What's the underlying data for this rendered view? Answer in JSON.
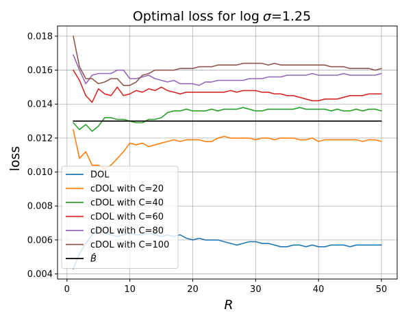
{
  "chart_data": {
    "type": "line",
    "title": "Optimal loss for log σ=1.25",
    "title_parts": {
      "prefix": "Optimal loss for ",
      "fn": "log",
      "sym": "σ",
      "suffix": "=1.25"
    },
    "xlabel": "R",
    "ylabel": "loss",
    "xlim": [
      -1.5,
      52.5
    ],
    "ylim": [
      0.0037,
      0.0186
    ],
    "xticks": [
      0,
      10,
      20,
      30,
      40,
      50
    ],
    "yticks": [
      0.004,
      0.006,
      0.008,
      0.01,
      0.012,
      0.014,
      0.016,
      0.018
    ],
    "ytick_labels": [
      "0.004",
      "0.006",
      "0.008",
      "0.010",
      "0.012",
      "0.014",
      "0.016",
      "0.018"
    ],
    "grid": true,
    "legend_position": "lower-left",
    "x": [
      1,
      2,
      3,
      4,
      5,
      6,
      7,
      8,
      9,
      10,
      11,
      12,
      13,
      14,
      15,
      16,
      17,
      18,
      19,
      20,
      21,
      22,
      23,
      24,
      25,
      26,
      27,
      28,
      29,
      30,
      31,
      32,
      33,
      34,
      35,
      36,
      37,
      38,
      39,
      40,
      41,
      42,
      43,
      44,
      45,
      46,
      47,
      48,
      49,
      50
    ],
    "series": [
      {
        "name": "DOL",
        "color": "#1f77b4",
        "values": [
          0.0043,
          0.0052,
          0.0058,
          0.0063,
          0.0067,
          0.0064,
          0.0063,
          0.0062,
          0.0063,
          0.0064,
          0.0063,
          0.0063,
          0.0064,
          0.0063,
          0.0062,
          0.0063,
          0.0062,
          0.0063,
          0.0061,
          0.006,
          0.0061,
          0.006,
          0.006,
          0.006,
          0.0059,
          0.0058,
          0.0057,
          0.0058,
          0.0059,
          0.0059,
          0.0058,
          0.0058,
          0.0057,
          0.0056,
          0.0056,
          0.0057,
          0.0057,
          0.0056,
          0.0057,
          0.0056,
          0.0056,
          0.0057,
          0.0057,
          0.0057,
          0.0056,
          0.0057,
          0.0057,
          0.0057,
          0.0057,
          0.0057
        ]
      },
      {
        "name": "cDOL with C=20",
        "color": "#ff7f0e",
        "values": [
          0.0125,
          0.0108,
          0.0112,
          0.0104,
          0.0104,
          0.0102,
          0.0104,
          0.0108,
          0.0112,
          0.0117,
          0.0116,
          0.0117,
          0.0115,
          0.0116,
          0.0117,
          0.0118,
          0.0119,
          0.0118,
          0.0119,
          0.0119,
          0.0119,
          0.0118,
          0.0118,
          0.012,
          0.0121,
          0.012,
          0.012,
          0.012,
          0.012,
          0.0119,
          0.012,
          0.012,
          0.0119,
          0.012,
          0.012,
          0.012,
          0.0119,
          0.0119,
          0.012,
          0.0118,
          0.0119,
          0.0119,
          0.0119,
          0.0119,
          0.0119,
          0.0119,
          0.0118,
          0.0119,
          0.0119,
          0.0118
        ]
      },
      {
        "name": "cDOL with C=40",
        "color": "#2ca02c",
        "values": [
          0.0129,
          0.0125,
          0.0128,
          0.0124,
          0.0127,
          0.0132,
          0.0132,
          0.0131,
          0.0131,
          0.013,
          0.0129,
          0.0129,
          0.0131,
          0.0131,
          0.0132,
          0.0135,
          0.0136,
          0.0136,
          0.0137,
          0.0136,
          0.0136,
          0.0136,
          0.0137,
          0.0136,
          0.0137,
          0.0137,
          0.0137,
          0.0138,
          0.0137,
          0.0136,
          0.0136,
          0.0137,
          0.0137,
          0.0137,
          0.0137,
          0.0137,
          0.0138,
          0.0137,
          0.0137,
          0.0137,
          0.0137,
          0.0136,
          0.0137,
          0.0136,
          0.0136,
          0.0137,
          0.0136,
          0.0137,
          0.0137,
          0.0136
        ]
      },
      {
        "name": "cDOL with C=60",
        "color": "#d62728",
        "values": [
          0.016,
          0.0154,
          0.0145,
          0.0141,
          0.0149,
          0.0146,
          0.0145,
          0.015,
          0.0145,
          0.0146,
          0.0148,
          0.0147,
          0.0149,
          0.0148,
          0.015,
          0.0148,
          0.0147,
          0.0146,
          0.0147,
          0.0147,
          0.0147,
          0.0147,
          0.0147,
          0.0147,
          0.0147,
          0.0148,
          0.0147,
          0.0148,
          0.0148,
          0.0148,
          0.0147,
          0.0147,
          0.0146,
          0.0146,
          0.0145,
          0.0145,
          0.0144,
          0.0143,
          0.0142,
          0.0142,
          0.0143,
          0.0143,
          0.0143,
          0.0144,
          0.0145,
          0.0145,
          0.0145,
          0.0146,
          0.0146,
          0.0146
        ]
      },
      {
        "name": "cDOL with C=80",
        "color": "#9467bd",
        "values": [
          0.0169,
          0.016,
          0.0152,
          0.0157,
          0.0158,
          0.0158,
          0.0158,
          0.016,
          0.016,
          0.0155,
          0.0155,
          0.0156,
          0.0157,
          0.0155,
          0.0154,
          0.0153,
          0.0154,
          0.0152,
          0.0152,
          0.0152,
          0.0151,
          0.0153,
          0.0153,
          0.0154,
          0.0154,
          0.0154,
          0.0154,
          0.0154,
          0.0155,
          0.0155,
          0.0155,
          0.0156,
          0.0156,
          0.0156,
          0.0157,
          0.0157,
          0.0157,
          0.0157,
          0.0158,
          0.0157,
          0.0157,
          0.0157,
          0.0157,
          0.0158,
          0.0157,
          0.0157,
          0.0157,
          0.0157,
          0.0157,
          0.0158
        ]
      },
      {
        "name": "cDOL with C=100",
        "color": "#8c564b",
        "values": [
          0.018,
          0.0162,
          0.0155,
          0.0155,
          0.0152,
          0.0153,
          0.0155,
          0.0155,
          0.0151,
          0.0151,
          0.0153,
          0.0157,
          0.0158,
          0.016,
          0.016,
          0.016,
          0.016,
          0.0161,
          0.0161,
          0.0161,
          0.0162,
          0.0162,
          0.0162,
          0.0163,
          0.0163,
          0.0163,
          0.0163,
          0.0164,
          0.0164,
          0.0164,
          0.0164,
          0.0163,
          0.0164,
          0.0163,
          0.0163,
          0.0163,
          0.0163,
          0.0163,
          0.0163,
          0.0163,
          0.0163,
          0.0162,
          0.0162,
          0.0162,
          0.0161,
          0.0161,
          0.0161,
          0.0161,
          0.016,
          0.0161
        ]
      },
      {
        "name": "B̂",
        "color": "#000000",
        "values": [
          0.013,
          0.013,
          0.013,
          0.013,
          0.013,
          0.013,
          0.013,
          0.013,
          0.013,
          0.013,
          0.013,
          0.013,
          0.013,
          0.013,
          0.013,
          0.013,
          0.013,
          0.013,
          0.013,
          0.013,
          0.013,
          0.013,
          0.013,
          0.013,
          0.013,
          0.013,
          0.013,
          0.013,
          0.013,
          0.013,
          0.013,
          0.013,
          0.013,
          0.013,
          0.013,
          0.013,
          0.013,
          0.013,
          0.013,
          0.013,
          0.013,
          0.013,
          0.013,
          0.013,
          0.013,
          0.013,
          0.013,
          0.013,
          0.013,
          0.013
        ]
      }
    ]
  }
}
